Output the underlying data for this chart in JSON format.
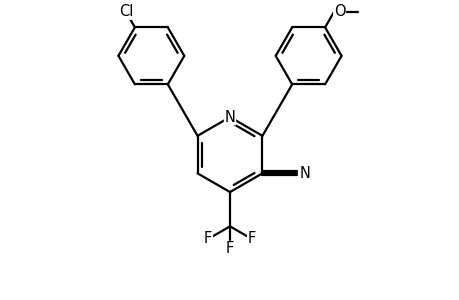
{
  "bg_color": "#ffffff",
  "line_color": "#000000",
  "line_width": 1.6,
  "dbo": 0.055,
  "font_size": 10.5,
  "fig_width": 4.6,
  "fig_height": 3.0,
  "dpi": 100,
  "xlim": [
    0,
    10
  ],
  "ylim": [
    0,
    6.5
  ]
}
